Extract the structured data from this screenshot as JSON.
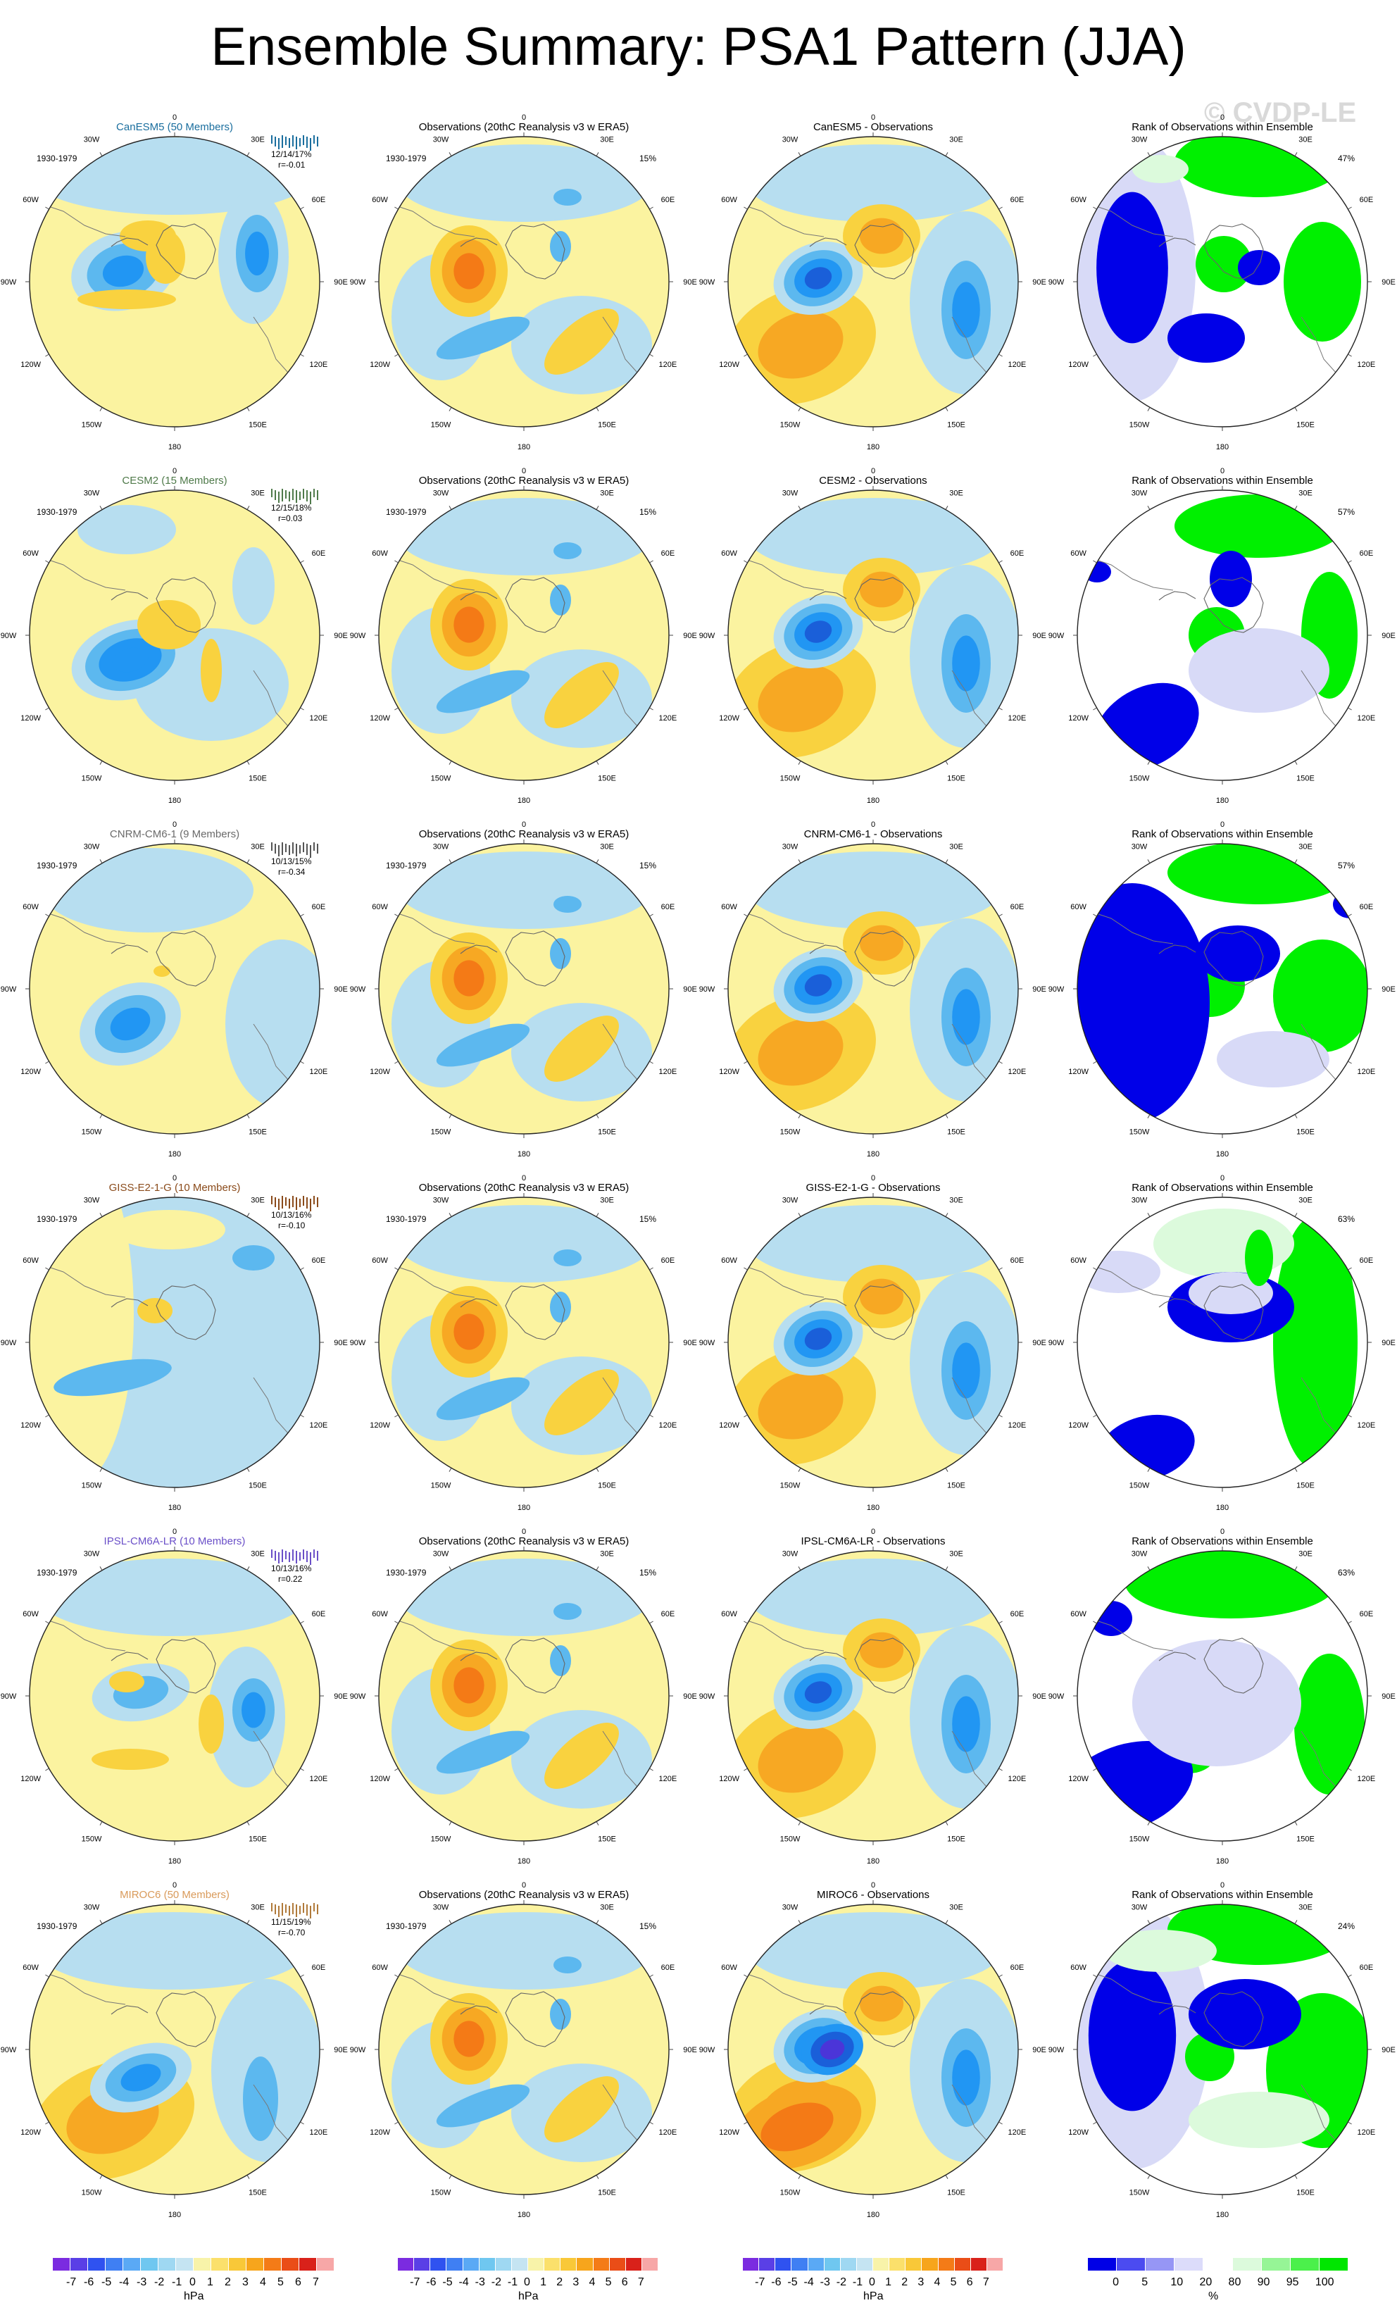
{
  "title": "Ensemble Summary: PSA1 Pattern (JJA)",
  "watermark": "© CVDP-LE",
  "obs_title": "Observations (20thC Reanalysis v3 w ERA5)",
  "rank_title": "Rank of Observations within Ensemble",
  "period": "1930-1979",
  "obs_pct": "15%",
  "lon_labels": [
    "0",
    "30E",
    "60E",
    "90E",
    "120E",
    "150E",
    "180",
    "150W",
    "120W",
    "90W",
    "60W",
    "30W"
  ],
  "rows": [
    {
      "model_title": "CanESM5 (50 Members)",
      "title_color": "#1a6e9e",
      "stats": "12/14/17%",
      "r": "r=-0.01",
      "diff_title": "CanESM5 - Observations",
      "rank_pct": "47%",
      "strip_color": "#1a6e9e"
    },
    {
      "model_title": "CESM2 (15 Members)",
      "title_color": "#4f7a4a",
      "stats": "12/15/18%",
      "r": "r=0.03",
      "diff_title": "CESM2 - Observations",
      "rank_pct": "57%",
      "strip_color": "#4f7a4a"
    },
    {
      "model_title": "CNRM-CM6-1 (9 Members)",
      "title_color": "#6a6a6a",
      "stats": "10/13/15%",
      "r": "r=-0.34",
      "diff_title": "CNRM-CM6-1 - Observations",
      "rank_pct": "57%",
      "strip_color": "#555555"
    },
    {
      "model_title": "GISS-E2-1-G (10 Members)",
      "title_color": "#8a4a1a",
      "stats": "10/13/16%",
      "r": "r=-0.10",
      "diff_title": "GISS-E2-1-G - Observations",
      "rank_pct": "63%",
      "strip_color": "#8a4a1a"
    },
    {
      "model_title": "IPSL-CM6A-LR (10 Members)",
      "title_color": "#6a4fc8",
      "stats": "10/13/16%",
      "r": "r=0.22",
      "diff_title": "IPSL-CM6A-LR - Observations",
      "rank_pct": "63%",
      "strip_color": "#6a4fc8"
    },
    {
      "model_title": "MIROC6 (50 Members)",
      "title_color": "#d99a5a",
      "stats": "11/15/19%",
      "r": "r=-0.70",
      "diff_title": "MIROC6 - Observations",
      "rank_pct": "24%",
      "strip_color": "#b07a3a"
    }
  ],
  "colorbars": {
    "hpa": {
      "colors": [
        "#7b2be0",
        "#5a3fe6",
        "#2f52f0",
        "#3f7ff3",
        "#5aa9f5",
        "#6fc7f0",
        "#9fd8f2",
        "#c5e4f2",
        "#f8f3a9",
        "#fbe06b",
        "#f9c838",
        "#f7a51c",
        "#f47b17",
        "#ea4d17",
        "#d9211a",
        "#f7a7a7"
      ],
      "ticks": [
        "-7",
        "-6",
        "-5",
        "-4",
        "-3",
        "-2",
        "-1",
        "0",
        "1",
        "2",
        "3",
        "4",
        "5",
        "6",
        "7"
      ],
      "unit": "hPa"
    },
    "pct": {
      "colors": [
        "#0000e6",
        "#4b4bf0",
        "#9696f5",
        "#dcdcfa",
        "#ffffff",
        "#dcfadc",
        "#96f596",
        "#4bf04b",
        "#00e600"
      ],
      "ticks": [
        "0",
        "5",
        "10",
        "20",
        "80",
        "90",
        "95",
        "100"
      ],
      "unit": "%"
    }
  },
  "chart_data": [
    {
      "type": "heatmap",
      "title": "CanESM5 (50 Members)",
      "colorbar_unit": "hPa",
      "note": "PSA1 JJA ensemble-summary pattern, polar stereographic SH map",
      "pcs_range": "12/14/17%",
      "pattern_correlation": "r=-0.01"
    },
    {
      "type": "heatmap",
      "title": "Observations (20thC Reanalysis v3 w ERA5)",
      "colorbar_unit": "hPa",
      "variance_explained": "15%"
    },
    {
      "type": "heatmap",
      "title": "CanESM5 - Observations",
      "colorbar_unit": "hPa"
    },
    {
      "type": "heatmap",
      "title": "Rank of Observations within Ensemble",
      "colorbar_unit": "%",
      "rank_pct": [
        "47%",
        "57%",
        "57%",
        "63%",
        "63%",
        "24%"
      ]
    }
  ]
}
